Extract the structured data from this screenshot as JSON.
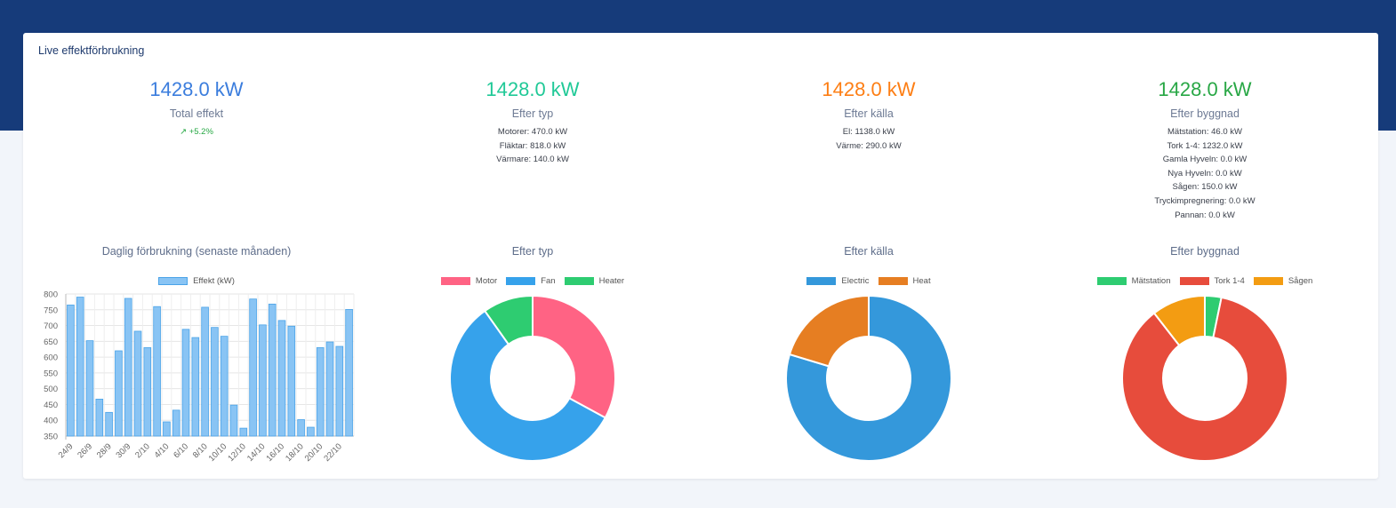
{
  "card": {
    "title": "Live effektförbrukning"
  },
  "stats": [
    {
      "value": "1428.0 kW",
      "label": "Total effekt",
      "trend": "↗ +5.2%",
      "details": [],
      "color": "#3b7ddd"
    },
    {
      "value": "1428.0 kW",
      "label": "Efter typ",
      "trend": "",
      "details": [
        "Motorer: 470.0 kW",
        "Fläktar: 818.0 kW",
        "Värmare: 140.0 kW"
      ],
      "color": "#20c997"
    },
    {
      "value": "1428.0 kW",
      "label": "Efter källa",
      "trend": "",
      "details": [
        "El: 1138.0 kW",
        "Värme: 290.0 kW"
      ],
      "color": "#fd7e14"
    },
    {
      "value": "1428.0 kW",
      "label": "Efter byggnad",
      "trend": "",
      "details": [
        "Mätstation: 46.0 kW",
        "Tork 1-4: 1232.0 kW",
        "Gamla Hyveln: 0.0 kW",
        "Nya Hyveln: 0.0 kW",
        "Sågen: 150.0 kW",
        "Tryckimpregnering: 0.0 kW",
        "Pannan: 0.0 kW"
      ],
      "color": "#28a745"
    }
  ],
  "chart_data": [
    {
      "type": "bar",
      "title": "Daglig förbrukning (senaste månaden)",
      "series": [
        {
          "name": "Effekt (kW)",
          "color": "#89c4f4",
          "values": [
            765,
            790,
            652,
            467,
            425,
            620,
            786,
            682,
            630,
            760,
            395,
            432,
            688,
            662,
            758,
            694,
            666,
            448,
            375,
            784,
            702,
            768,
            716,
            698,
            402,
            378,
            630,
            648,
            634,
            751
          ]
        }
      ],
      "categories": [
        "24/9",
        "25/9",
        "26/9",
        "27/9",
        "28/9",
        "29/9",
        "30/9",
        "1/10",
        "2/10",
        "3/10",
        "4/10",
        "5/10",
        "6/10",
        "7/10",
        "8/10",
        "9/10",
        "10/10",
        "11/10",
        "12/10",
        "13/10",
        "14/10",
        "15/10",
        "16/10",
        "17/10",
        "18/10",
        "19/10",
        "20/10",
        "21/10",
        "22/10",
        "23/10"
      ],
      "tick_labels": [
        "24/9",
        "26/9",
        "28/9",
        "30/9",
        "2/10",
        "4/10",
        "6/10",
        "8/10",
        "10/10",
        "12/10",
        "14/10",
        "16/10",
        "18/10",
        "20/10",
        "22/10"
      ],
      "ylim": [
        350,
        800
      ],
      "yticks": [
        350,
        400,
        450,
        500,
        550,
        600,
        650,
        700,
        750,
        800
      ],
      "grid": true,
      "legend": "top"
    },
    {
      "type": "pie",
      "title": "Efter typ",
      "labels": [
        "Motor",
        "Fan",
        "Heater"
      ],
      "values": [
        470,
        818,
        140
      ],
      "colors": [
        "#ff6384",
        "#36a2eb",
        "#2ecc71"
      ],
      "legend": "top"
    },
    {
      "type": "pie",
      "title": "Efter källa",
      "labels": [
        "Electric",
        "Heat"
      ],
      "values": [
        1138,
        290
      ],
      "colors": [
        "#3498db",
        "#e67e22"
      ],
      "legend": "top"
    },
    {
      "type": "pie",
      "title": "Efter byggnad",
      "labels": [
        "Mätstation",
        "Tork 1-4",
        "Sågen"
      ],
      "values": [
        46,
        1232,
        150
      ],
      "colors": [
        "#2ecc71",
        "#e74c3c",
        "#f39c12"
      ],
      "legend": "top"
    }
  ]
}
